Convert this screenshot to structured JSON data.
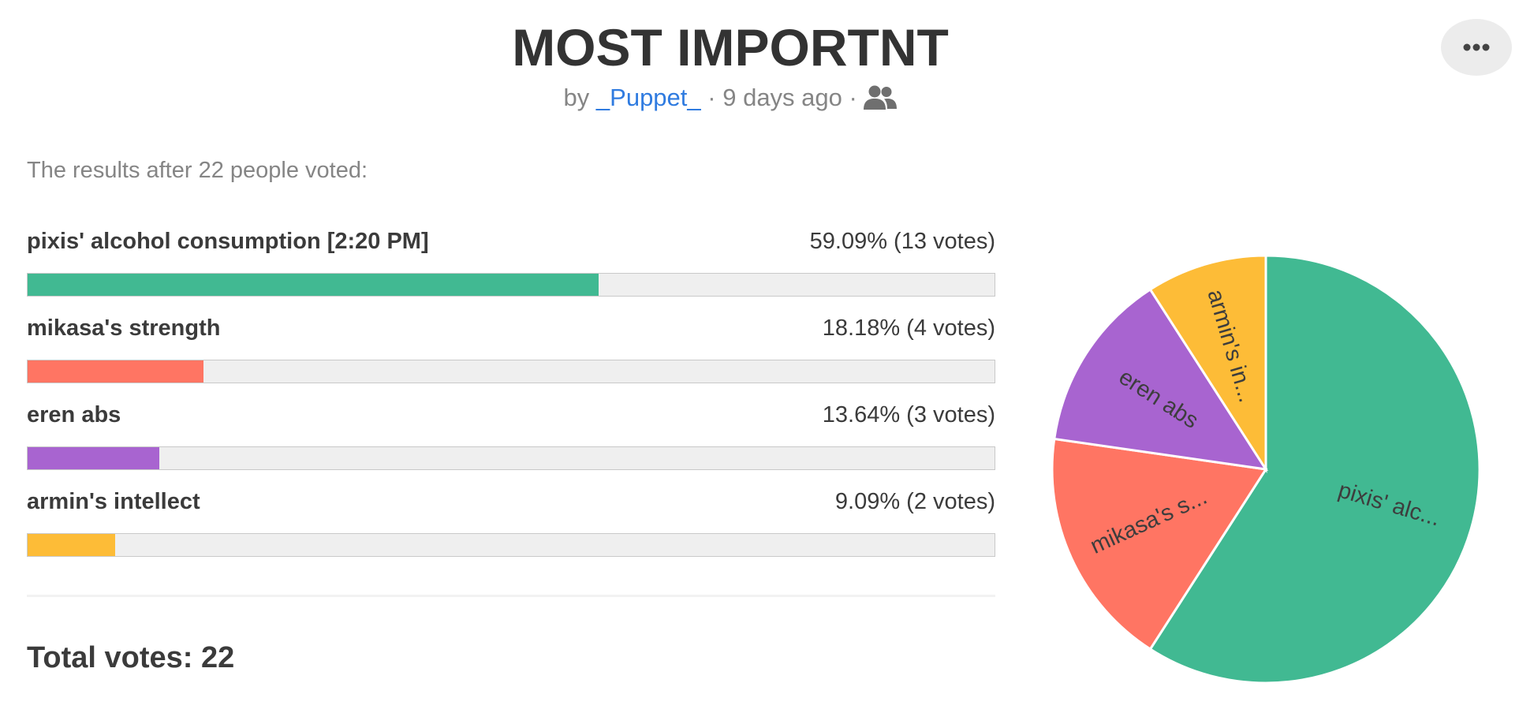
{
  "poll": {
    "title": "MOST IMPORTNT",
    "byline_prefix": "by",
    "author": "_Puppet_",
    "separator": "·",
    "age": "9 days ago",
    "intro": "The results after 22 people voted:",
    "total": "Total votes: 22"
  },
  "icons": {
    "more": "more-horizontal-icon",
    "group": "users-icon"
  },
  "options": [
    {
      "label": "pixis' alcohol consumption [2:20 PM]",
      "result": "59.09% (13 votes)",
      "percent": 59.09,
      "votes": 13,
      "color": "#41b992",
      "pie_label": "pixis' alc..."
    },
    {
      "label": "mikasa's strength",
      "result": "18.18% (4 votes)",
      "percent": 18.18,
      "votes": 4,
      "color": "#ff7563",
      "pie_label": "mikasa's s..."
    },
    {
      "label": "eren abs",
      "result": "13.64% (3 votes)",
      "percent": 13.64,
      "votes": 3,
      "color": "#a864d0",
      "pie_label": "eren abs"
    },
    {
      "label": "armin's intellect",
      "result": "9.09% (2 votes)",
      "percent": 9.09,
      "votes": 2,
      "color": "#fdbc37",
      "pie_label": "armin's in..."
    }
  ],
  "chart_data": {
    "type": "pie",
    "categories": [
      "pixis' alc...",
      "mikasa's s...",
      "eren abs",
      "armin's in..."
    ],
    "values": [
      13,
      4,
      3,
      2
    ],
    "colors": [
      "#41b992",
      "#ff7563",
      "#a864d0",
      "#fdbc37"
    ],
    "start": "12 o'clock",
    "direction": "clockwise"
  }
}
